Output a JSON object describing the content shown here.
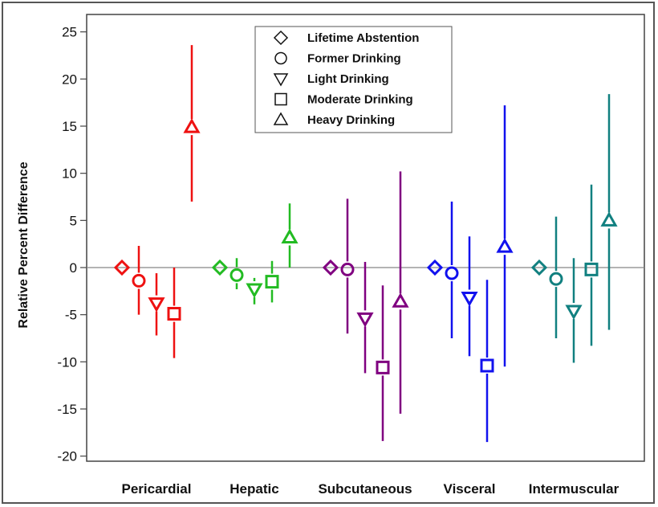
{
  "chart_data": {
    "type": "scatter",
    "subtype": "point-estimate-with-error-bars",
    "title": "",
    "xlabel": "",
    "ylabel": "Relative Percent Difference",
    "ylim": [
      -22,
      26
    ],
    "yticks": [
      25,
      20,
      15,
      10,
      5,
      0,
      -5,
      -10,
      -15,
      -20
    ],
    "ytick_labels": [
      "25",
      "20",
      "15",
      "10",
      "5",
      "0",
      "-5",
      "-10",
      "-15",
      "-20"
    ],
    "reference_line": 0,
    "grid": false,
    "legend_position": "top-center",
    "categories": [
      "Pericardial",
      "Hepatic",
      "Subcutaneous",
      "Visceral",
      "Intermuscular"
    ],
    "category_colors": [
      "#ee1111",
      "#22bb22",
      "#800080",
      "#1111ee",
      "#118080"
    ],
    "series": [
      {
        "name": "Lifetime Abstention",
        "marker": "diamond",
        "values": [
          0,
          0,
          0,
          0,
          0
        ],
        "lower": [
          null,
          null,
          null,
          null,
          null
        ],
        "upper": [
          null,
          null,
          null,
          null,
          null
        ]
      },
      {
        "name": "Former Drinking",
        "marker": "circle",
        "values": [
          -1.4,
          -0.8,
          -0.2,
          -0.6,
          -1.2
        ],
        "lower": [
          -5.0,
          -2.3,
          -7.0,
          -7.5,
          -7.5
        ],
        "upper": [
          2.3,
          1.0,
          7.3,
          7.0,
          5.4
        ]
      },
      {
        "name": "Light Drinking",
        "marker": "triangle-down",
        "values": [
          -3.8,
          -2.3,
          -5.4,
          -3.2,
          -4.6
        ],
        "lower": [
          -7.2,
          -3.9,
          -11.2,
          -9.4,
          -10.1
        ],
        "upper": [
          -0.6,
          -1.1,
          0.6,
          3.3,
          1.0
        ]
      },
      {
        "name": "Moderate Drinking",
        "marker": "square",
        "values": [
          -4.9,
          -1.5,
          -10.6,
          -10.4,
          -0.2
        ],
        "lower": [
          -9.6,
          -3.7,
          -18.4,
          -18.5,
          -8.3
        ],
        "upper": [
          0,
          0.7,
          -1.9,
          -1.3,
          8.8
        ]
      },
      {
        "name": "Heavy Drinking",
        "marker": "triangle-up",
        "values": [
          14.9,
          3.2,
          -3.6,
          2.2,
          5.0
        ],
        "lower": [
          7.0,
          0,
          -15.5,
          -10.5,
          -6.6
        ],
        "upper": [
          23.6,
          6.8,
          10.2,
          17.2,
          18.4
        ]
      }
    ]
  }
}
